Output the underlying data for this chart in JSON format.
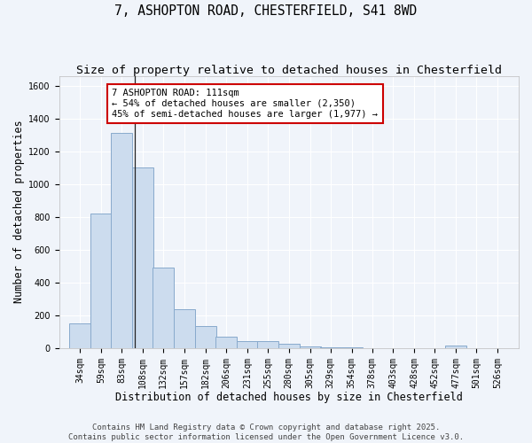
{
  "title_line1": "7, ASHOPTON ROAD, CHESTERFIELD, S41 8WD",
  "title_line2": "Size of property relative to detached houses in Chesterfield",
  "xlabel": "Distribution of detached houses by size in Chesterfield",
  "ylabel": "Number of detached properties",
  "bar_color": "#ccdcee",
  "bar_edge_color": "#88aacc",
  "background_color": "#f0f4fa",
  "plot_bg_color": "#f0f4fa",
  "bins_left": [
    34,
    59,
    83,
    108,
    132,
    157,
    182,
    206,
    231,
    255,
    280,
    305,
    329,
    354,
    378,
    403,
    428,
    452,
    477,
    501,
    526
  ],
  "heights": [
    150,
    820,
    1310,
    1100,
    490,
    235,
    135,
    70,
    45,
    40,
    25,
    10,
    5,
    5,
    0,
    0,
    0,
    0,
    15,
    0,
    0
  ],
  "bin_width": 25,
  "property_size": 111,
  "annotation_text": "7 ASHOPTON ROAD: 111sqm\n← 54% of detached houses are smaller (2,350)\n45% of semi-detached houses are larger (1,977) →",
  "annotation_box_color": "#ffffff",
  "annotation_box_edge": "#cc0000",
  "vline_color": "#222222",
  "ylim": [
    0,
    1660
  ],
  "yticks": [
    0,
    200,
    400,
    600,
    800,
    1000,
    1200,
    1400,
    1600
  ],
  "grid_color": "#ffffff",
  "title_fontsize": 10.5,
  "subtitle_fontsize": 9.5,
  "axis_label_fontsize": 8.5,
  "tick_fontsize": 7,
  "annotation_fontsize": 7.5,
  "footer_fontsize": 6.5,
  "footer_line1": "Contains HM Land Registry data © Crown copyright and database right 2025.",
  "footer_line2": "Contains public sector information licensed under the Open Government Licence v3.0."
}
